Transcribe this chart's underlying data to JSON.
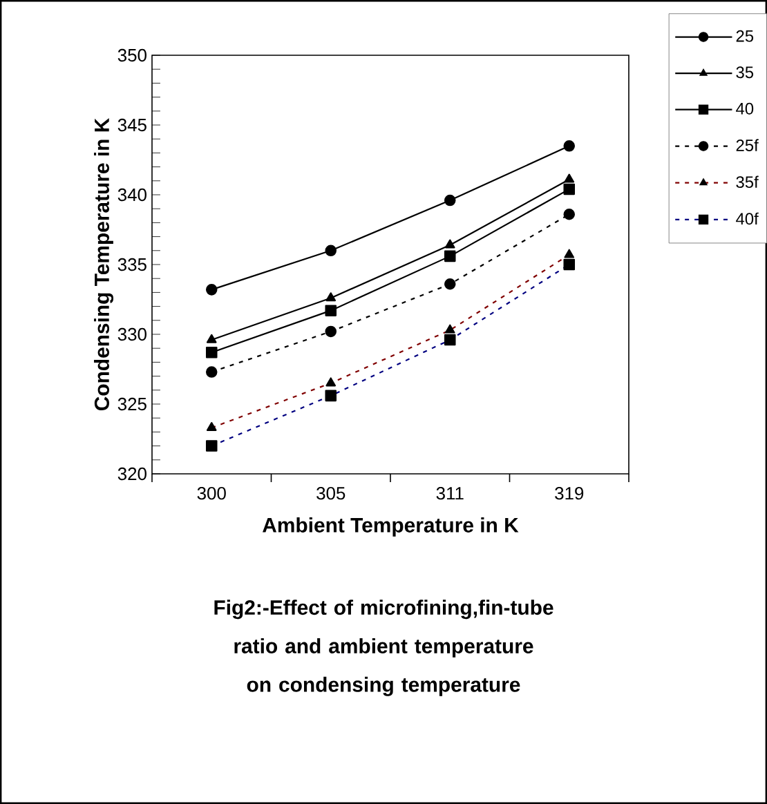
{
  "chart_data": {
    "type": "line",
    "xlabel": "Ambient Temperature in K",
    "ylabel": "Condensing Temperature in K",
    "categories": [
      "300",
      "305",
      "311",
      "319"
    ],
    "series": [
      {
        "name": "25",
        "color": "#000000",
        "line_style": "solid",
        "marker": "circle",
        "values": [
          333.2,
          336.0,
          339.6,
          343.5
        ]
      },
      {
        "name": "35",
        "color": "#000000",
        "line_style": "solid",
        "marker": "triangle",
        "values": [
          329.6,
          332.6,
          336.4,
          341.1
        ]
      },
      {
        "name": "40",
        "color": "#000000",
        "line_style": "solid",
        "marker": "square",
        "values": [
          328.7,
          331.7,
          335.6,
          340.4
        ]
      },
      {
        "name": "25f",
        "color": "#000000",
        "line_style": "dashed",
        "marker": "circle",
        "values": [
          327.3,
          330.2,
          333.6,
          338.6
        ]
      },
      {
        "name": "35f",
        "color": "#800000",
        "line_style": "dashed",
        "marker": "triangle",
        "values": [
          323.3,
          326.5,
          330.3,
          335.7
        ]
      },
      {
        "name": "40f",
        "color": "#000080",
        "line_style": "dashed",
        "marker": "square",
        "values": [
          322.0,
          325.6,
          329.6,
          335.0
        ]
      }
    ],
    "ylim": [
      320,
      350
    ],
    "yticks": [
      320,
      325,
      330,
      335,
      340,
      345,
      350
    ],
    "grid": false,
    "legend": "top right",
    "annotations": [
      "Fig2:-Effect of microfining,fin-tube ratio and ambient temperature on condensing temperature"
    ]
  }
}
